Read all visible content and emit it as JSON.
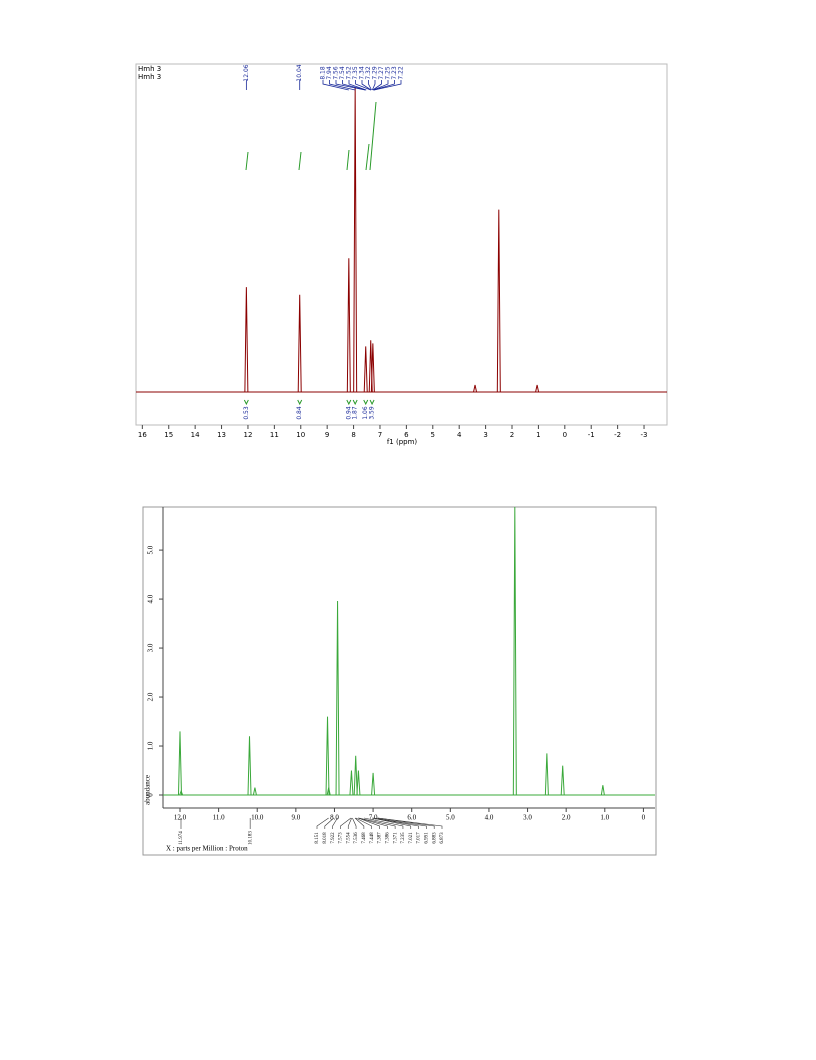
{
  "figure1": {
    "type": "nmr-spectrum",
    "legend": [
      "Hmh 3",
      "Hmh 3"
    ],
    "x_label": "f1 (ppm)",
    "xlim": [
      16.24,
      -3.87
    ],
    "xticks": [
      16,
      15,
      14,
      13,
      12,
      11,
      10,
      9,
      8,
      7,
      6,
      5,
      4,
      3,
      2,
      1,
      0,
      -1,
      -2,
      -3
    ],
    "peaks": [
      {
        "ppm": 12.06,
        "height": 34.5
      },
      {
        "ppm": 10.04,
        "height": 32
      },
      {
        "ppm": 8.18,
        "height": 44
      },
      {
        "ppm": 7.94,
        "height": 100
      },
      {
        "ppm": 7.54,
        "height": 15
      },
      {
        "ppm": 7.35,
        "height": 17
      },
      {
        "ppm": 7.27,
        "height": 16
      },
      {
        "ppm": 3.4,
        "height": 2.3
      },
      {
        "ppm": 2.5,
        "height": 60
      },
      {
        "ppm": 1.05,
        "height": 2.3
      }
    ],
    "peak_labels": [
      12.06,
      10.04,
      8.18,
      7.94,
      7.56,
      7.54,
      7.52,
      7.35,
      7.34,
      7.32,
      7.29,
      7.27,
      7.25,
      7.23,
      7.22
    ],
    "integrals": [
      {
        "ppm": 12.06,
        "value": 0.53
      },
      {
        "ppm": 10.04,
        "value": 0.84
      },
      {
        "ppm": 8.18,
        "value": 0.94
      },
      {
        "ppm": 7.94,
        "value": 1.87
      },
      {
        "ppm": 7.54,
        "value": 1.06
      },
      {
        "ppm": 7.3,
        "value": 3.59
      }
    ]
  },
  "figure2": {
    "type": "nmr-spectrum",
    "y_label": "abundance",
    "x_label": "X : parts per Million : Proton",
    "xlim": [
      12.44,
      -0.3
    ],
    "ylim": [
      0,
      5.88
    ],
    "xticks": [
      {
        "value": 12,
        "label": "12.0"
      },
      {
        "value": 11,
        "label": "11.0"
      },
      {
        "value": 10,
        "label": "10.0"
      },
      {
        "value": 9,
        "label": "9.0"
      },
      {
        "value": 8,
        "label": "8.0"
      },
      {
        "value": 7,
        "label": "7.0"
      },
      {
        "value": 6,
        "label": "6.0"
      },
      {
        "value": 5,
        "label": "5.0"
      },
      {
        "value": 4,
        "label": "4.0"
      },
      {
        "value": 3,
        "label": "3.0"
      },
      {
        "value": 2,
        "label": "2.0"
      },
      {
        "value": 1,
        "label": "1.0"
      },
      0
    ],
    "yticks": [
      0,
      {
        "value": 1,
        "label": "1.0"
      },
      {
        "value": 2,
        "label": "2.0"
      },
      {
        "value": 3,
        "label": "3.0"
      },
      {
        "value": 4,
        "label": "4.0"
      },
      {
        "value": 5,
        "label": "5.0"
      }
    ],
    "peaks": [
      {
        "ppm": 12.0,
        "height": 1.3
      },
      {
        "ppm": 11.97,
        "height": 0.08
      },
      {
        "ppm": 10.2,
        "height": 1.2
      },
      {
        "ppm": 10.06,
        "height": 0.15
      },
      {
        "ppm": 8.18,
        "height": 1.6
      },
      {
        "ppm": 8.15,
        "height": 0.15
      },
      {
        "ppm": 7.92,
        "height": 3.96
      },
      {
        "ppm": 7.56,
        "height": 0.5
      },
      {
        "ppm": 7.45,
        "height": 0.8
      },
      {
        "ppm": 7.38,
        "height": 0.5
      },
      {
        "ppm": 7.0,
        "height": 0.45
      },
      {
        "ppm": 3.33,
        "height": 5.88
      },
      {
        "ppm": 2.5,
        "height": 0.85
      },
      {
        "ppm": 2.09,
        "height": 0.6
      },
      {
        "ppm": 1.05,
        "height": 0.2
      }
    ],
    "peak_labels": [
      11.974,
      10.183,
      8.151,
      8.018,
      7.922,
      7.573,
      7.554,
      7.536,
      7.468,
      7.448,
      7.387,
      7.386,
      7.371,
      7.235,
      7.021,
      7.017,
      6.991,
      6.883,
      6.873
    ]
  }
}
